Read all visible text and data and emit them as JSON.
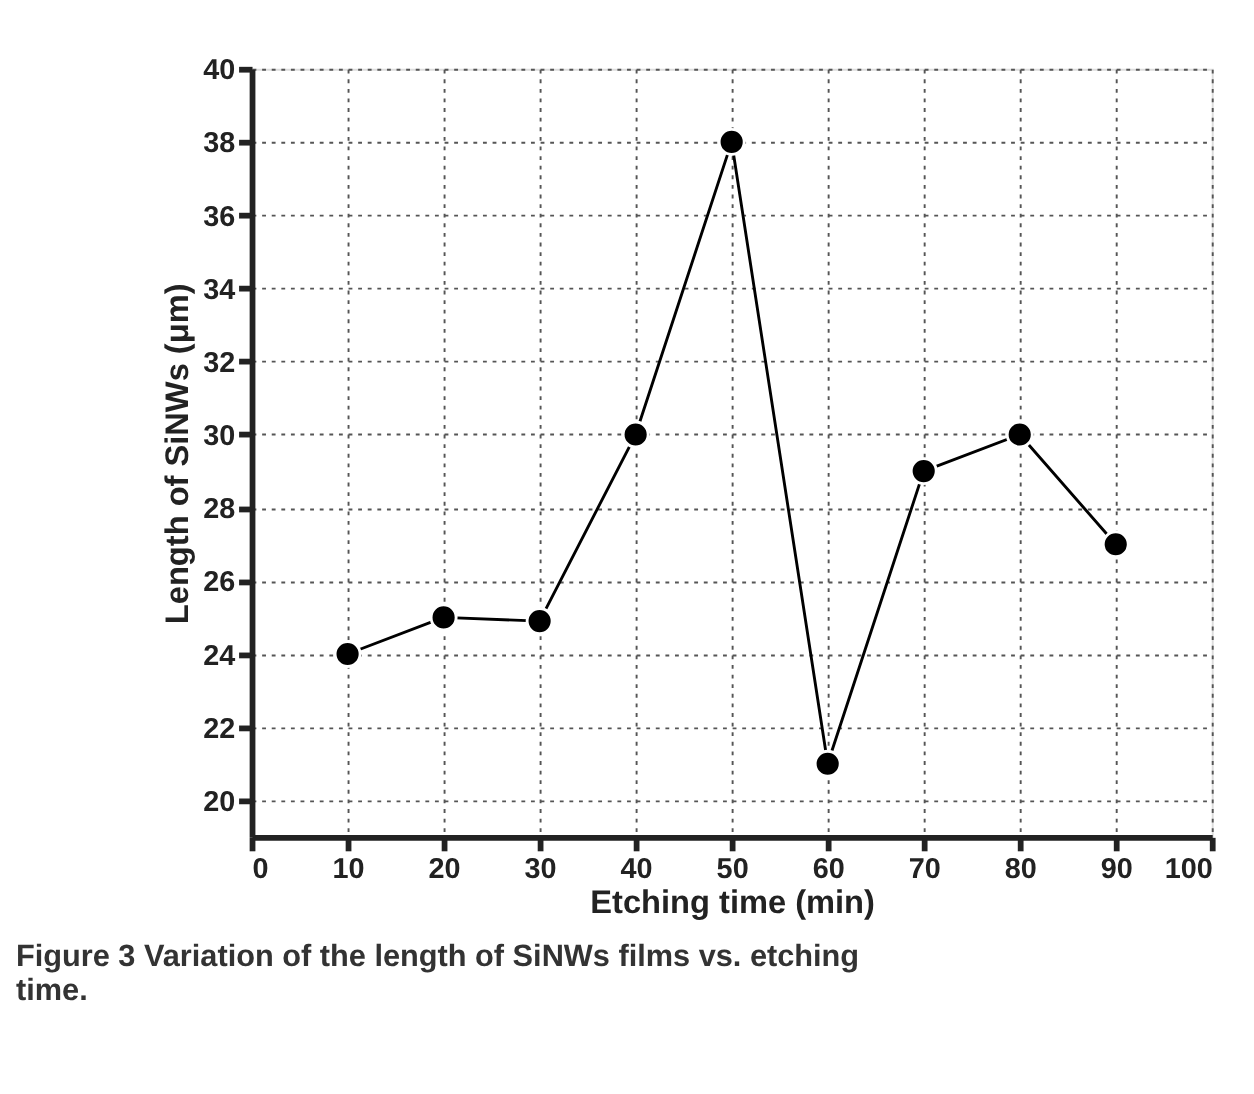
{
  "chart_data": {
    "type": "line",
    "xlabel": "Etching time (min)",
    "ylabel": "Length of SiNWs (μm)",
    "x": [
      10,
      20,
      30,
      40,
      50,
      60,
      70,
      80,
      90
    ],
    "series": [
      {
        "color": "#000000",
        "values": [
          24,
          25,
          24.9,
          30,
          38,
          21,
          29,
          30,
          27
        ]
      }
    ],
    "xlim": [
      0,
      100
    ],
    "xticks": [
      0,
      10,
      20,
      30,
      40,
      50,
      60,
      70,
      80,
      90,
      100
    ],
    "ylim": [
      19,
      40
    ],
    "yticks": [
      20,
      22,
      24,
      26,
      28,
      30,
      32,
      34,
      36,
      38,
      40
    ],
    "grid": true,
    "marker": "circle",
    "line_style": "solid",
    "legend": false,
    "annotations": [
      "Figure 3 Variation of the length of SiNWs films vs. etching time."
    ]
  }
}
